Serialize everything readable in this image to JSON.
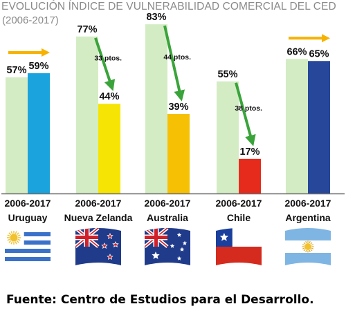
{
  "chart_data": {
    "type": "bar",
    "title": "EVOLUCIÓN ÍNDICE DE VULNERABILIDAD COMERCIAL DEL CED",
    "subtitle": "(2006-2017)",
    "categories": [
      "Uruguay",
      "Nueva Zelanda",
      "Australia",
      "Chile",
      "Argentina"
    ],
    "period_label": "2006-2017",
    "series": [
      {
        "name": "2006",
        "values": [
          57,
          77,
          83,
          55,
          66
        ],
        "labels": [
          "57%",
          "77%",
          "83%",
          "55%",
          "66%"
        ],
        "color": "#d4ecc4"
      },
      {
        "name": "2017",
        "values": [
          59,
          44,
          39,
          17,
          65
        ],
        "labels": [
          "59%",
          "44%",
          "39%",
          "17%",
          "65%"
        ],
        "colors": [
          "#1aa3dc",
          "#f6e405",
          "#f6c105",
          "#e62a1c",
          "#27479b"
        ]
      }
    ],
    "drops": [
      {
        "category": "Nueva Zelanda",
        "label": "33 ptos."
      },
      {
        "category": "Australia",
        "label": "44 ptos."
      },
      {
        "category": "Chile",
        "label": "38 ptos."
      }
    ],
    "trend_arrows": [
      "Uruguay",
      "Argentina"
    ],
    "ylim": [
      0,
      100
    ],
    "xlabel": "",
    "ylabel": "",
    "grid": false,
    "legend": "none",
    "source": "Fuente: Centro de Estudios para el Desarrollo.",
    "colors": {
      "arrow_green": "#3aa43a",
      "arrow_orange": "#f7b200",
      "baseline": "#6b6b6b"
    },
    "flags": [
      "uruguay-flag",
      "new-zealand-flag",
      "australia-flag",
      "chile-flag",
      "argentina-flag"
    ]
  }
}
